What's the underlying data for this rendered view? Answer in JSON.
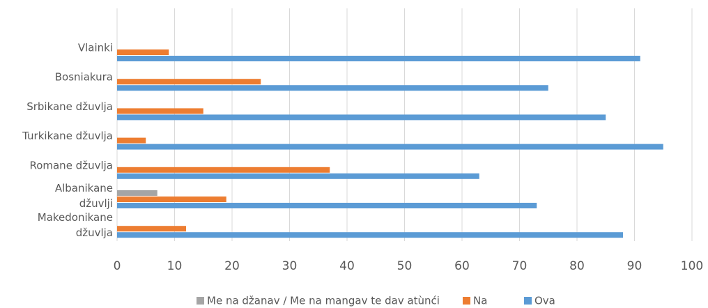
{
  "chart_data": {
    "type": "bar",
    "orientation": "horizontal",
    "categories": [
      "Vlainki",
      "Bosniakura",
      "Srbikane džuvlja",
      "Turkikane džuvlja",
      "Romane džuvlja",
      "Albanikane džuvlji",
      "Makedonikane džuvlja"
    ],
    "series": [
      {
        "name": "Me na džanav / Me na mangav te dav atùnći",
        "color": "#a5a5a5",
        "values": [
          0,
          0,
          0,
          0,
          0,
          7,
          0
        ]
      },
      {
        "name": "Na",
        "color": "#ed7d31",
        "values": [
          9,
          25,
          15,
          5,
          37,
          19,
          12
        ]
      },
      {
        "name": "Ova",
        "color": "#5b9bd5",
        "values": [
          91,
          75,
          85,
          95,
          63,
          73,
          88
        ]
      }
    ],
    "xlim": [
      0,
      100
    ],
    "xticks": [
      0,
      10,
      20,
      30,
      40,
      50,
      60,
      70,
      80,
      90,
      100
    ],
    "grid": true,
    "legend": "bottom"
  }
}
